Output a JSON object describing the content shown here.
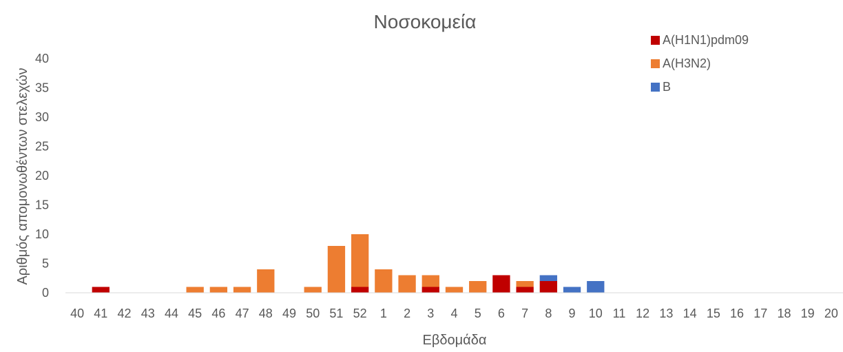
{
  "chart_data": {
    "type": "bar",
    "stacked": true,
    "title": "Νοσοκομεία",
    "xlabel": "Εβδομάδα",
    "ylabel": "Αριθμός απομονωθέντων στελεχών",
    "ylim": [
      0,
      40
    ],
    "yticks": [
      0,
      5,
      10,
      15,
      20,
      25,
      30,
      35,
      40
    ],
    "grid": false,
    "legend_position": "top-right",
    "categories": [
      "40",
      "41",
      "42",
      "43",
      "44",
      "45",
      "46",
      "47",
      "48",
      "49",
      "50",
      "51",
      "52",
      "1",
      "2",
      "3",
      "4",
      "5",
      "6",
      "7",
      "8",
      "9",
      "10",
      "11",
      "12",
      "13",
      "14",
      "15",
      "16",
      "17",
      "18",
      "19",
      "20"
    ],
    "series": [
      {
        "name": "A(H1N1)pdm09",
        "color": "#c00000",
        "values": [
          0,
          1,
          0,
          0,
          0,
          0,
          0,
          0,
          0,
          0,
          0,
          0,
          1,
          0,
          0,
          1,
          0,
          0,
          3,
          1,
          2,
          0,
          0,
          0,
          0,
          0,
          0,
          0,
          0,
          0,
          0,
          0,
          0
        ]
      },
      {
        "name": "A(H3N2)",
        "color": "#ed7d31",
        "values": [
          0,
          0,
          0,
          0,
          0,
          1,
          1,
          1,
          4,
          0,
          1,
          8,
          9,
          4,
          3,
          2,
          1,
          2,
          0,
          1,
          0,
          0,
          0,
          0,
          0,
          0,
          0,
          0,
          0,
          0,
          0,
          0,
          0
        ]
      },
      {
        "name": "B",
        "color": "#4472c4",
        "values": [
          0,
          0,
          0,
          0,
          0,
          0,
          0,
          0,
          0,
          0,
          0,
          0,
          0,
          0,
          0,
          0,
          0,
          0,
          0,
          0,
          1,
          1,
          2,
          0,
          0,
          0,
          0,
          0,
          0,
          0,
          0,
          0,
          0
        ]
      }
    ]
  }
}
